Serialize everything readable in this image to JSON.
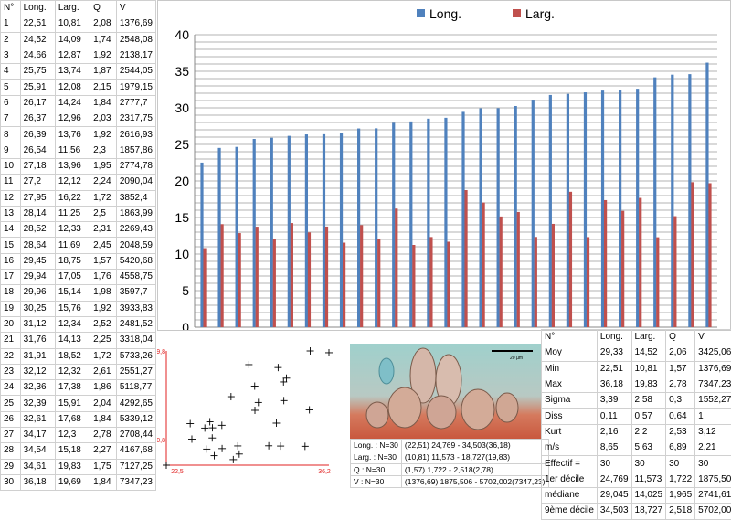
{
  "table": {
    "headers": [
      "N°",
      "Long.",
      "Larg.",
      "Q",
      "V"
    ],
    "rows": [
      [
        "1",
        "22,51",
        "10,81",
        "2,08",
        "1376,69"
      ],
      [
        "2",
        "24,52",
        "14,09",
        "1,74",
        "2548,08"
      ],
      [
        "3",
        "24,66",
        "12,87",
        "1,92",
        "2138,17"
      ],
      [
        "4",
        "25,75",
        "13,74",
        "1,87",
        "2544,05"
      ],
      [
        "5",
        "25,91",
        "12,08",
        "2,15",
        "1979,15"
      ],
      [
        "6",
        "26,17",
        "14,24",
        "1,84",
        "2777,7"
      ],
      [
        "7",
        "26,37",
        "12,96",
        "2,03",
        "2317,75"
      ],
      [
        "8",
        "26,39",
        "13,76",
        "1,92",
        "2616,93"
      ],
      [
        "9",
        "26,54",
        "11,56",
        "2,3",
        "1857,86"
      ],
      [
        "10",
        "27,18",
        "13,96",
        "1,95",
        "2774,78"
      ],
      [
        "11",
        "27,2",
        "12,12",
        "2,24",
        "2090,04"
      ],
      [
        "12",
        "27,95",
        "16,22",
        "1,72",
        "3852,4"
      ],
      [
        "13",
        "28,14",
        "11,25",
        "2,5",
        "1863,99"
      ],
      [
        "14",
        "28,52",
        "12,33",
        "2,31",
        "2269,43"
      ],
      [
        "15",
        "28,64",
        "11,69",
        "2,45",
        "2048,59"
      ],
      [
        "16",
        "29,45",
        "18,75",
        "1,57",
        "5420,68"
      ],
      [
        "17",
        "29,94",
        "17,05",
        "1,76",
        "4558,75"
      ],
      [
        "18",
        "29,96",
        "15,14",
        "1,98",
        "3597,7"
      ],
      [
        "19",
        "30,25",
        "15,76",
        "1,92",
        "3933,83"
      ],
      [
        "20",
        "31,12",
        "12,34",
        "2,52",
        "2481,52"
      ],
      [
        "21",
        "31,76",
        "14,13",
        "2,25",
        "3318,04"
      ],
      [
        "22",
        "31,91",
        "18,52",
        "1,72",
        "5733,26"
      ],
      [
        "23",
        "32,12",
        "12,32",
        "2,61",
        "2551,27"
      ],
      [
        "24",
        "32,36",
        "17,38",
        "1,86",
        "5118,77"
      ],
      [
        "25",
        "32,39",
        "15,91",
        "2,04",
        "4292,65"
      ],
      [
        "26",
        "32,61",
        "17,68",
        "1,84",
        "5339,12"
      ],
      [
        "27",
        "34,17",
        "12,3",
        "2,78",
        "2708,44"
      ],
      [
        "28",
        "34,54",
        "15,18",
        "2,27",
        "4167,68"
      ],
      [
        "29",
        "34,61",
        "19,83",
        "1,75",
        "7127,25"
      ],
      [
        "30",
        "36,18",
        "19,69",
        "1,84",
        "7347,23"
      ]
    ]
  },
  "chart_data": [
    {
      "type": "bar",
      "legend": [
        "Long.",
        "Larg."
      ],
      "legend_position": "top",
      "grid": true,
      "ylim": [
        0,
        40
      ],
      "yticks": [
        "0",
        "5",
        "10",
        "15",
        "20",
        "25",
        "30",
        "35",
        "40"
      ],
      "series": [
        {
          "name": "Long.",
          "color": "#4f81bd",
          "values": [
            22.51,
            24.52,
            24.66,
            25.75,
            25.91,
            26.17,
            26.37,
            26.39,
            26.54,
            27.18,
            27.2,
            27.95,
            28.14,
            28.52,
            28.64,
            29.45,
            29.94,
            29.96,
            30.25,
            31.12,
            31.76,
            31.91,
            32.12,
            32.36,
            32.39,
            32.61,
            34.17,
            34.54,
            34.61,
            36.18
          ]
        },
        {
          "name": "Larg.",
          "color": "#c0504d",
          "values": [
            10.81,
            14.09,
            12.87,
            13.74,
            12.08,
            14.24,
            12.96,
            13.76,
            11.56,
            13.96,
            12.12,
            16.22,
            11.25,
            12.33,
            11.69,
            18.75,
            17.05,
            15.14,
            15.76,
            12.34,
            14.13,
            18.52,
            12.32,
            17.38,
            15.91,
            17.68,
            12.3,
            15.18,
            19.83,
            19.69
          ]
        }
      ]
    },
    {
      "type": "scatter",
      "xlim": [
        22.51,
        36.18
      ],
      "ylim": [
        10.81,
        19.83
      ],
      "labels": {
        "ymax": "19,8",
        "ymin": "10,8",
        "xmin": "22,5",
        "xmax": "36,2"
      },
      "x": [
        22.51,
        24.52,
        24.66,
        25.75,
        25.91,
        26.17,
        26.37,
        26.39,
        26.54,
        27.18,
        27.2,
        27.95,
        28.14,
        28.52,
        28.64,
        29.45,
        29.94,
        29.96,
        30.25,
        31.12,
        31.76,
        31.91,
        32.12,
        32.36,
        32.39,
        32.61,
        34.17,
        34.54,
        34.61,
        36.18
      ],
      "y": [
        10.81,
        14.09,
        12.87,
        13.74,
        12.08,
        14.24,
        12.96,
        13.76,
        11.56,
        13.96,
        12.12,
        16.22,
        11.25,
        12.33,
        11.69,
        18.75,
        17.05,
        15.14,
        15.76,
        12.34,
        14.13,
        18.52,
        12.32,
        17.38,
        15.91,
        17.68,
        12.3,
        15.18,
        19.83,
        19.69
      ]
    }
  ],
  "photo": {
    "scale_label": "20 µm"
  },
  "stats": {
    "headers": [
      "N°",
      "Long.",
      "Larg.",
      "Q",
      "V"
    ],
    "rows": [
      [
        "Moy",
        "29,33",
        "14,52",
        "2,06",
        "3425,06"
      ],
      [
        "Min",
        "22,51",
        "10,81",
        "1,57",
        "1376,69"
      ],
      [
        "Max",
        "36,18",
        "19,83",
        "2,78",
        "7347,23"
      ],
      [
        "Sigma",
        "3,39",
        "2,58",
        "0,3",
        "1552,27"
      ],
      [
        "Diss",
        "0,11",
        "0,57",
        "0,64",
        "1"
      ],
      [
        "Kurt",
        "2,16",
        "2,2",
        "2,53",
        "3,12"
      ],
      [
        "m/s",
        "8,65",
        "5,63",
        "6,89",
        "2,21"
      ],
      [
        "Effectif =",
        "30",
        "30",
        "30",
        "30"
      ],
      [
        "1er décile",
        "24,769",
        "11,573",
        "1,722",
        "1875,506"
      ],
      [
        "médiane",
        "29,045",
        "14,025",
        "1,965",
        "2741,61"
      ],
      [
        "9ème décile",
        "34,503",
        "18,727",
        "2,518",
        "5702,002"
      ]
    ]
  },
  "ranges": {
    "rows": [
      [
        "Long. : N=30",
        "(22,51) 24,769 - 34,503(36,18)"
      ],
      [
        "Larg. : N=30",
        "(10,81) 11,573 - 18,727(19,83)"
      ],
      [
        "Q : N=30",
        "(1,57) 1,722 - 2,518(2,78)"
      ],
      [
        "V : N=30",
        "(1376,69) 1875,506 - 5702,002(7347,23)"
      ]
    ]
  }
}
